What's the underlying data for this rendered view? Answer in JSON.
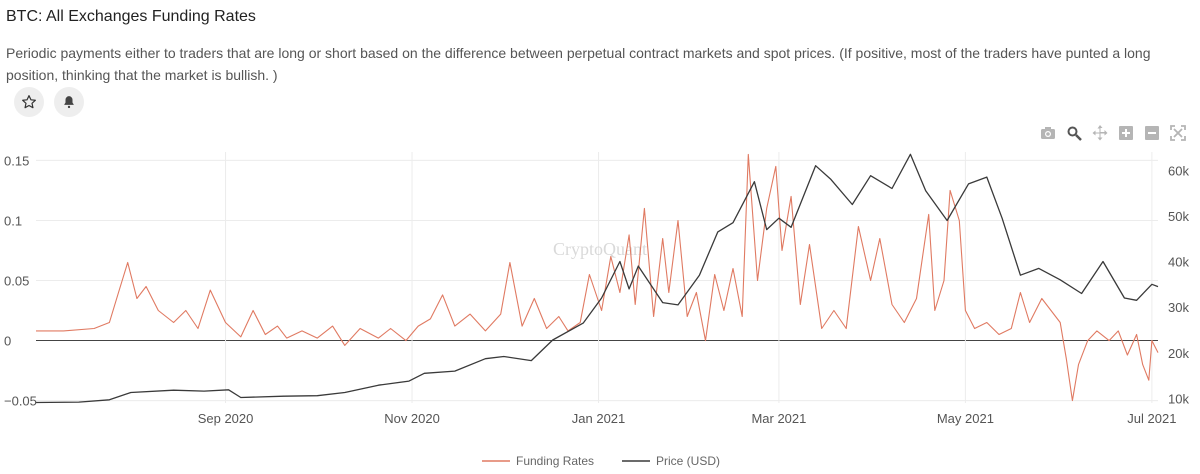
{
  "title": "BTC: All Exchanges Funding Rates",
  "description": "Periodic payments either to traders that are long or short based on the difference between perpetual contract markets and spot prices. (If positive, most of the traders have punted a long position, thinking that the market is bullish. )",
  "buttons": {
    "favorite_icon": "star-icon",
    "alert_icon": "bell-icon"
  },
  "toolbar": [
    "camera-icon",
    "zoom-icon",
    "pan-icon",
    "zoom-in-icon",
    "zoom-out-icon",
    "autoscale-icon"
  ],
  "watermark": "CryptoQuant",
  "colors": {
    "funding": "#e07a62",
    "price": "#3a3a3a",
    "zero_line": "#444444",
    "grid": "#ececec"
  },
  "chart_data": {
    "type": "line",
    "x_tick_labels": [
      "Sep 2020",
      "Nov 2020",
      "Jan 2021",
      "Mar 2021",
      "May 2021",
      "Jul 2021"
    ],
    "x_tick_dates": [
      "2020-09-01",
      "2020-11-01",
      "2021-01-01",
      "2021-03-01",
      "2021-05-01",
      "2021-07-01"
    ],
    "x_range": [
      "2020-07-01",
      "2021-07-03"
    ],
    "y_left": {
      "ticks": [
        0.15,
        0.1,
        0.05,
        0,
        -0.05
      ],
      "tick_labels": [
        "0.15",
        "0.1",
        "0.05",
        "0",
        "−0.05"
      ],
      "range": [
        -0.052,
        0.157
      ]
    },
    "y_right": {
      "ticks": [
        60000,
        50000,
        40000,
        30000,
        20000,
        10000
      ],
      "tick_labels": [
        "60k",
        "50k",
        "40k",
        "30k",
        "20k",
        "10k"
      ],
      "range": [
        9000,
        64000
      ]
    },
    "grid": true,
    "legend_position": "bottom-center",
    "series": [
      {
        "name": "Funding Rates",
        "axis": "left",
        "points": [
          [
            "2020-07-01",
            0.008
          ],
          [
            "2020-07-10",
            0.008
          ],
          [
            "2020-07-20",
            0.01
          ],
          [
            "2020-07-25",
            0.015
          ],
          [
            "2020-07-28",
            0.04
          ],
          [
            "2020-07-31",
            0.065
          ],
          [
            "2020-08-03",
            0.035
          ],
          [
            "2020-08-06",
            0.045
          ],
          [
            "2020-08-10",
            0.025
          ],
          [
            "2020-08-15",
            0.015
          ],
          [
            "2020-08-19",
            0.025
          ],
          [
            "2020-08-23",
            0.01
          ],
          [
            "2020-08-27",
            0.042
          ],
          [
            "2020-09-01",
            0.015
          ],
          [
            "2020-09-06",
            0.003
          ],
          [
            "2020-09-10",
            0.025
          ],
          [
            "2020-09-14",
            0.005
          ],
          [
            "2020-09-18",
            0.012
          ],
          [
            "2020-09-21",
            0.002
          ],
          [
            "2020-09-26",
            0.008
          ],
          [
            "2020-10-01",
            0.002
          ],
          [
            "2020-10-06",
            0.012
          ],
          [
            "2020-10-10",
            -0.004
          ],
          [
            "2020-10-15",
            0.01
          ],
          [
            "2020-10-21",
            0.002
          ],
          [
            "2020-10-25",
            0.01
          ],
          [
            "2020-10-30",
            0.0
          ],
          [
            "2020-11-03",
            0.012
          ],
          [
            "2020-11-07",
            0.018
          ],
          [
            "2020-11-11",
            0.038
          ],
          [
            "2020-11-15",
            0.012
          ],
          [
            "2020-11-20",
            0.022
          ],
          [
            "2020-11-25",
            0.008
          ],
          [
            "2020-11-30",
            0.022
          ],
          [
            "2020-12-03",
            0.065
          ],
          [
            "2020-12-07",
            0.012
          ],
          [
            "2020-12-11",
            0.035
          ],
          [
            "2020-12-15",
            0.01
          ],
          [
            "2020-12-19",
            0.02
          ],
          [
            "2020-12-22",
            0.008
          ],
          [
            "2020-12-26",
            0.015
          ],
          [
            "2020-12-29",
            0.055
          ],
          [
            "2021-01-02",
            0.025
          ],
          [
            "2021-01-05",
            0.07
          ],
          [
            "2021-01-08",
            0.04
          ],
          [
            "2021-01-11",
            0.088
          ],
          [
            "2021-01-13",
            0.03
          ],
          [
            "2021-01-16",
            0.11
          ],
          [
            "2021-01-19",
            0.02
          ],
          [
            "2021-01-22",
            0.085
          ],
          [
            "2021-01-24",
            0.04
          ],
          [
            "2021-01-27",
            0.1
          ],
          [
            "2021-01-30",
            0.02
          ],
          [
            "2021-02-02",
            0.04
          ],
          [
            "2021-02-05",
            0.0
          ],
          [
            "2021-02-08",
            0.055
          ],
          [
            "2021-02-11",
            0.025
          ],
          [
            "2021-02-14",
            0.06
          ],
          [
            "2021-02-17",
            0.02
          ],
          [
            "2021-02-19",
            0.155
          ],
          [
            "2021-02-22",
            0.05
          ],
          [
            "2021-02-25",
            0.11
          ],
          [
            "2021-02-28",
            0.145
          ],
          [
            "2021-03-02",
            0.075
          ],
          [
            "2021-03-05",
            0.12
          ],
          [
            "2021-03-08",
            0.03
          ],
          [
            "2021-03-11",
            0.08
          ],
          [
            "2021-03-15",
            0.01
          ],
          [
            "2021-03-19",
            0.025
          ],
          [
            "2021-03-23",
            0.01
          ],
          [
            "2021-03-27",
            0.095
          ],
          [
            "2021-03-31",
            0.05
          ],
          [
            "2021-04-03",
            0.085
          ],
          [
            "2021-04-07",
            0.03
          ],
          [
            "2021-04-11",
            0.015
          ],
          [
            "2021-04-15",
            0.035
          ],
          [
            "2021-04-19",
            0.105
          ],
          [
            "2021-04-21",
            0.025
          ],
          [
            "2021-04-24",
            0.05
          ],
          [
            "2021-04-26",
            0.125
          ],
          [
            "2021-04-29",
            0.1
          ],
          [
            "2021-05-01",
            0.025
          ],
          [
            "2021-05-04",
            0.01
          ],
          [
            "2021-05-08",
            0.015
          ],
          [
            "2021-05-12",
            0.005
          ],
          [
            "2021-05-16",
            0.01
          ],
          [
            "2021-05-19",
            0.04
          ],
          [
            "2021-05-22",
            0.015
          ],
          [
            "2021-05-26",
            0.035
          ],
          [
            "2021-05-29",
            0.025
          ],
          [
            "2021-06-01",
            0.015
          ],
          [
            "2021-06-03",
            -0.015
          ],
          [
            "2021-06-05",
            -0.05
          ],
          [
            "2021-06-07",
            -0.02
          ],
          [
            "2021-06-10",
            0.0
          ],
          [
            "2021-06-13",
            0.008
          ],
          [
            "2021-06-17",
            0.0
          ],
          [
            "2021-06-20",
            0.008
          ],
          [
            "2021-06-23",
            -0.012
          ],
          [
            "2021-06-26",
            0.005
          ],
          [
            "2021-06-28",
            -0.02
          ],
          [
            "2021-06-30",
            -0.033
          ],
          [
            "2021-07-01",
            0.0
          ],
          [
            "2021-07-03",
            -0.01
          ]
        ]
      },
      {
        "name": "Price (USD)",
        "axis": "right",
        "points": [
          [
            "2020-07-01",
            9100
          ],
          [
            "2020-07-15",
            9200
          ],
          [
            "2020-07-25",
            9700
          ],
          [
            "2020-08-01",
            11300
          ],
          [
            "2020-08-15",
            11800
          ],
          [
            "2020-08-25",
            11600
          ],
          [
            "2020-09-02",
            11900
          ],
          [
            "2020-09-06",
            10200
          ],
          [
            "2020-09-20",
            10500
          ],
          [
            "2020-10-01",
            10600
          ],
          [
            "2020-10-10",
            11300
          ],
          [
            "2020-10-21",
            12900
          ],
          [
            "2020-10-31",
            13800
          ],
          [
            "2020-11-05",
            15500
          ],
          [
            "2020-11-15",
            16000
          ],
          [
            "2020-11-25",
            18700
          ],
          [
            "2020-12-01",
            19200
          ],
          [
            "2020-12-10",
            18300
          ],
          [
            "2020-12-17",
            22800
          ],
          [
            "2020-12-27",
            26500
          ],
          [
            "2021-01-02",
            32000
          ],
          [
            "2021-01-08",
            40000
          ],
          [
            "2021-01-11",
            34000
          ],
          [
            "2021-01-14",
            39000
          ],
          [
            "2021-01-22",
            31000
          ],
          [
            "2021-01-27",
            30500
          ],
          [
            "2021-02-03",
            37000
          ],
          [
            "2021-02-09",
            46500
          ],
          [
            "2021-02-14",
            48500
          ],
          [
            "2021-02-21",
            57500
          ],
          [
            "2021-02-25",
            47000
          ],
          [
            "2021-03-01",
            49500
          ],
          [
            "2021-03-05",
            47500
          ],
          [
            "2021-03-13",
            61000
          ],
          [
            "2021-03-18",
            58000
          ],
          [
            "2021-03-25",
            52500
          ],
          [
            "2021-03-31",
            58800
          ],
          [
            "2021-04-07",
            56000
          ],
          [
            "2021-04-13",
            63500
          ],
          [
            "2021-04-18",
            55500
          ],
          [
            "2021-04-25",
            49000
          ],
          [
            "2021-05-02",
            57000
          ],
          [
            "2021-05-08",
            58500
          ],
          [
            "2021-05-13",
            49500
          ],
          [
            "2021-05-19",
            37000
          ],
          [
            "2021-05-25",
            38500
          ],
          [
            "2021-06-01",
            36000
          ],
          [
            "2021-06-08",
            33000
          ],
          [
            "2021-06-15",
            40000
          ],
          [
            "2021-06-22",
            32000
          ],
          [
            "2021-06-26",
            31500
          ],
          [
            "2021-07-01",
            35000
          ],
          [
            "2021-07-03",
            34500
          ]
        ]
      }
    ]
  }
}
